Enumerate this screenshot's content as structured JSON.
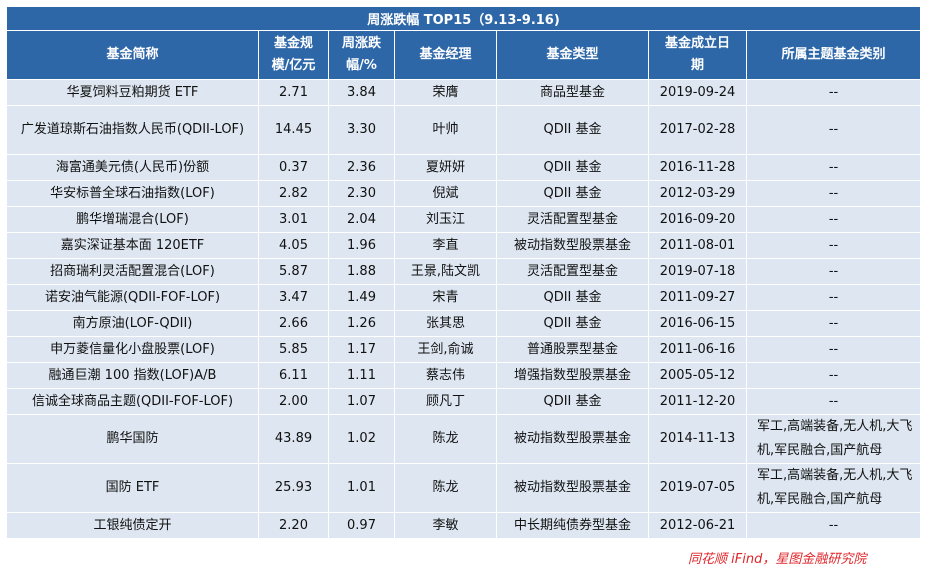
{
  "title": "周涨跌幅 TOP15（9.13-9.16)",
  "headers": {
    "name": "基金简称",
    "size_l1": "基金规",
    "size_l2": "模/亿元",
    "chg_l1": "周涨跌",
    "chg_l2": "幅/%",
    "manager": "基金经理",
    "type": "基金类型",
    "date_l1": "基金成立日",
    "date_l2": "期",
    "theme": "所属主题基金类别"
  },
  "rows": [
    {
      "name": "华夏饲料豆粕期货 ETF",
      "size": "2.71",
      "chg": "3.84",
      "manager": "荣膺",
      "type": "商品型基金",
      "date": "2019-09-24",
      "theme": "--"
    },
    {
      "name": "广发道琼斯石油指数人民币(QDII-LOF)",
      "size": "14.45",
      "chg": "3.30",
      "manager": "叶帅",
      "type": "QDII 基金",
      "date": "2017-02-28",
      "theme": "--"
    },
    {
      "name": "海富通美元债(人民币)份额",
      "size": "0.37",
      "chg": "2.36",
      "manager": "夏妍妍",
      "type": "QDII 基金",
      "date": "2016-11-28",
      "theme": "--"
    },
    {
      "name": "华安标普全球石油指数(LOF)",
      "size": "2.82",
      "chg": "2.30",
      "manager": "倪斌",
      "type": "QDII 基金",
      "date": "2012-03-29",
      "theme": "--"
    },
    {
      "name": "鹏华增瑞混合(LOF)",
      "size": "3.01",
      "chg": "2.04",
      "manager": "刘玉江",
      "type": "灵活配置型基金",
      "date": "2016-09-20",
      "theme": "--"
    },
    {
      "name": "嘉实深证基本面 120ETF",
      "size": "4.05",
      "chg": "1.96",
      "manager": "李直",
      "type": "被动指数型股票基金",
      "date": "2011-08-01",
      "theme": "--"
    },
    {
      "name": "招商瑞利灵活配置混合(LOF)",
      "size": "5.87",
      "chg": "1.88",
      "manager": "王景,陆文凯",
      "type": "灵活配置型基金",
      "date": "2019-07-18",
      "theme": "--"
    },
    {
      "name": "诺安油气能源(QDII-FOF-LOF)",
      "size": "3.47",
      "chg": "1.49",
      "manager": "宋青",
      "type": "QDII 基金",
      "date": "2011-09-27",
      "theme": "--"
    },
    {
      "name": "南方原油(LOF-QDII)",
      "size": "2.66",
      "chg": "1.26",
      "manager": "张其思",
      "type": "QDII 基金",
      "date": "2016-06-15",
      "theme": "--"
    },
    {
      "name": "申万菱信量化小盘股票(LOF)",
      "size": "5.85",
      "chg": "1.17",
      "manager": "王剑,俞诚",
      "type": "普通股票型基金",
      "date": "2011-06-16",
      "theme": "--"
    },
    {
      "name": "融通巨潮 100 指数(LOF)A/B",
      "size": "6.11",
      "chg": "1.11",
      "manager": "蔡志伟",
      "type": "增强指数型股票基金",
      "date": "2005-05-12",
      "theme": "--"
    },
    {
      "name": "信诚全球商品主题(QDII-FOF-LOF)",
      "size": "2.00",
      "chg": "1.07",
      "manager": "顾凡丁",
      "type": "QDII 基金",
      "date": "2011-12-20",
      "theme": "--"
    },
    {
      "name": "鹏华国防",
      "size": "43.89",
      "chg": "1.02",
      "manager": "陈龙",
      "type": "被动指数型股票基金",
      "date": "2014-11-13",
      "theme": "军工,高端装备,无人机,大飞机,军民融合,国产航母"
    },
    {
      "name": "国防 ETF",
      "size": "25.93",
      "chg": "1.01",
      "manager": "陈龙",
      "type": "被动指数型股票基金",
      "date": "2019-07-05",
      "theme": "军工,高端装备,无人机,大飞机,军民融合,国产航母"
    },
    {
      "name": "工银纯债定开",
      "size": "2.20",
      "chg": "0.97",
      "manager": "李敏",
      "type": "中长期纯债券型基金",
      "date": "2012-06-21",
      "theme": "--"
    }
  ],
  "source": "同花顺 iFind，星图金融研究院"
}
